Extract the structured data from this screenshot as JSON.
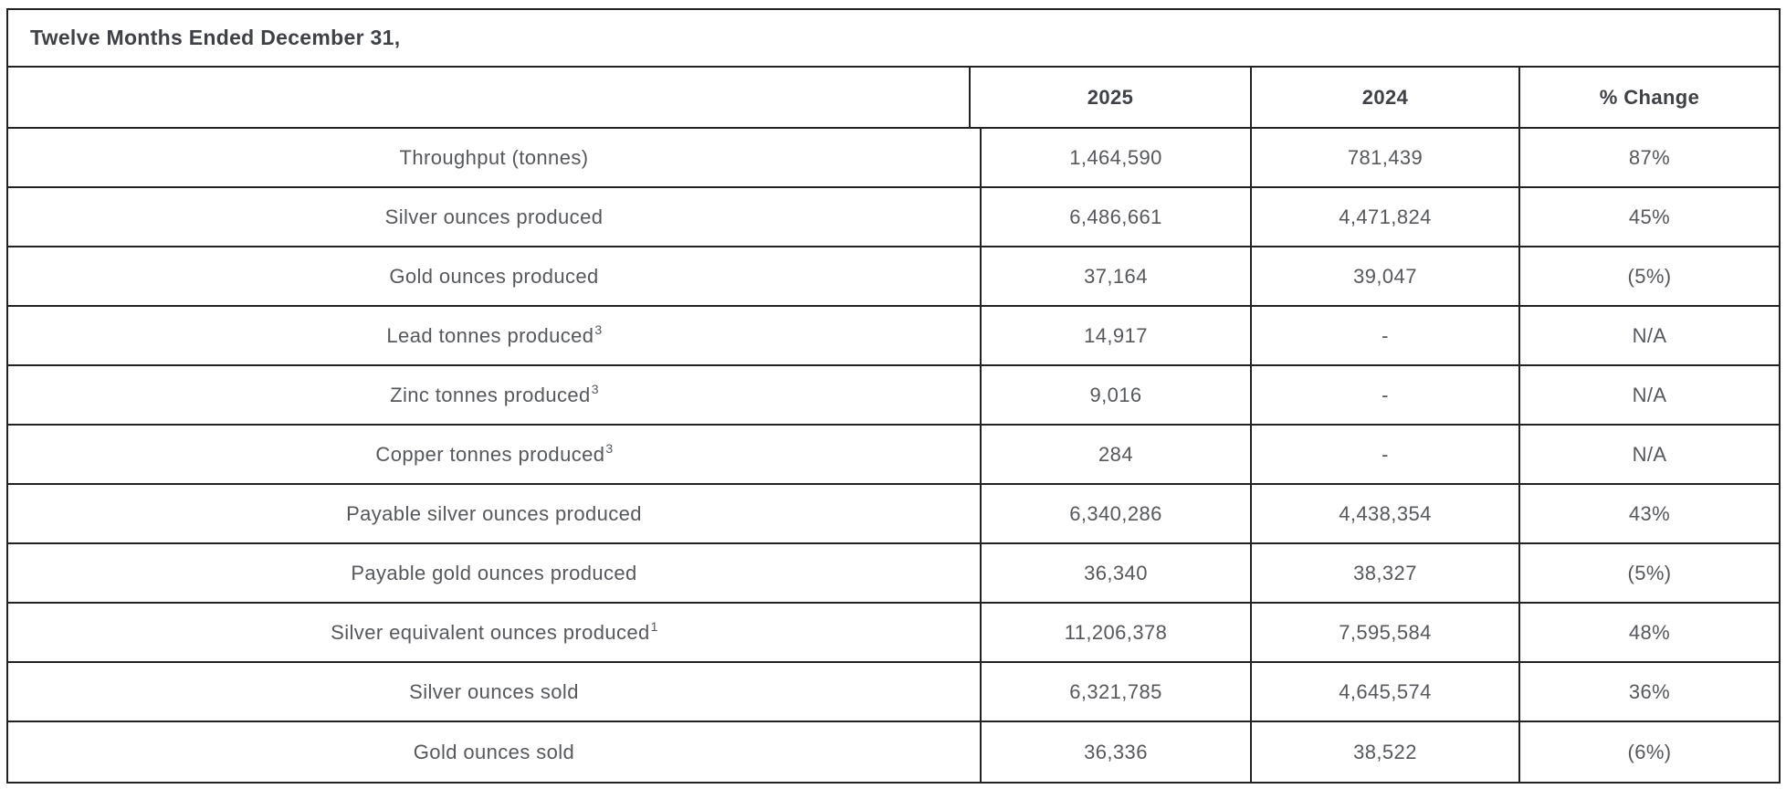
{
  "table": {
    "title": "Twelve Months Ended December 31,",
    "columns": {
      "year_a": "2025",
      "year_b": "2024",
      "change": "% Change"
    },
    "rows": [
      {
        "label": "Throughput (tonnes)",
        "sup": "",
        "v2025": "1,464,590",
        "v2024": "781,439",
        "change": "87%"
      },
      {
        "label": "Silver ounces produced",
        "sup": "",
        "v2025": "6,486,661",
        "v2024": "4,471,824",
        "change": "45%"
      },
      {
        "label": "Gold ounces produced",
        "sup": "",
        "v2025": "37,164",
        "v2024": "39,047",
        "change": "(5%)"
      },
      {
        "label": "Lead tonnes produced",
        "sup": "3",
        "v2025": "14,917",
        "v2024": "-",
        "change": "N/A"
      },
      {
        "label": "Zinc tonnes produced",
        "sup": "3",
        "v2025": "9,016",
        "v2024": "-",
        "change": "N/A"
      },
      {
        "label": "Copper tonnes produced",
        "sup": "3",
        "v2025": "284",
        "v2024": "-",
        "change": "N/A"
      },
      {
        "label": "Payable silver ounces produced",
        "sup": "",
        "v2025": "6,340,286",
        "v2024": "4,438,354",
        "change": "43%"
      },
      {
        "label": "Payable gold ounces produced",
        "sup": "",
        "v2025": "36,340",
        "v2024": "38,327",
        "change": "(5%)"
      },
      {
        "label": "Silver equivalent ounces produced",
        "sup": "1",
        "v2025": "11,206,378",
        "v2024": "7,595,584",
        "change": "48%"
      },
      {
        "label": "Silver ounces sold",
        "sup": "",
        "v2025": "6,321,785",
        "v2024": "4,645,574",
        "change": "36%"
      },
      {
        "label": "Gold ounces sold",
        "sup": "",
        "v2025": "36,336",
        "v2024": "38,522",
        "change": "(6%)"
      }
    ],
    "colors": {
      "border": "#222222",
      "header_text": "#3e4145",
      "body_text": "#55585c",
      "background": "#ffffff"
    }
  },
  "chart_data": {
    "type": "table",
    "title": "Twelve Months Ended December 31,",
    "columns": [
      "",
      "2025",
      "2024",
      "% Change"
    ],
    "rows": [
      [
        "Throughput (tonnes)",
        "1,464,590",
        "781,439",
        "87%"
      ],
      [
        "Silver ounces produced",
        "6,486,661",
        "4,471,824",
        "45%"
      ],
      [
        "Gold ounces produced",
        "37,164",
        "39,047",
        "(5%)"
      ],
      [
        "Lead tonnes produced [3]",
        "14,917",
        "-",
        "N/A"
      ],
      [
        "Zinc tonnes produced [3]",
        "9,016",
        "-",
        "N/A"
      ],
      [
        "Copper tonnes produced [3]",
        "284",
        "-",
        "N/A"
      ],
      [
        "Payable silver ounces produced",
        "6,340,286",
        "4,438,354",
        "43%"
      ],
      [
        "Payable gold ounces produced",
        "36,340",
        "38,327",
        "(5%)"
      ],
      [
        "Silver equivalent ounces produced [1]",
        "11,206,378",
        "7,595,584",
        "48%"
      ],
      [
        "Silver ounces sold",
        "6,321,785",
        "4,645,574",
        "36%"
      ],
      [
        "Gold ounces sold",
        "36,336",
        "38,522",
        "(6%)"
      ]
    ]
  }
}
